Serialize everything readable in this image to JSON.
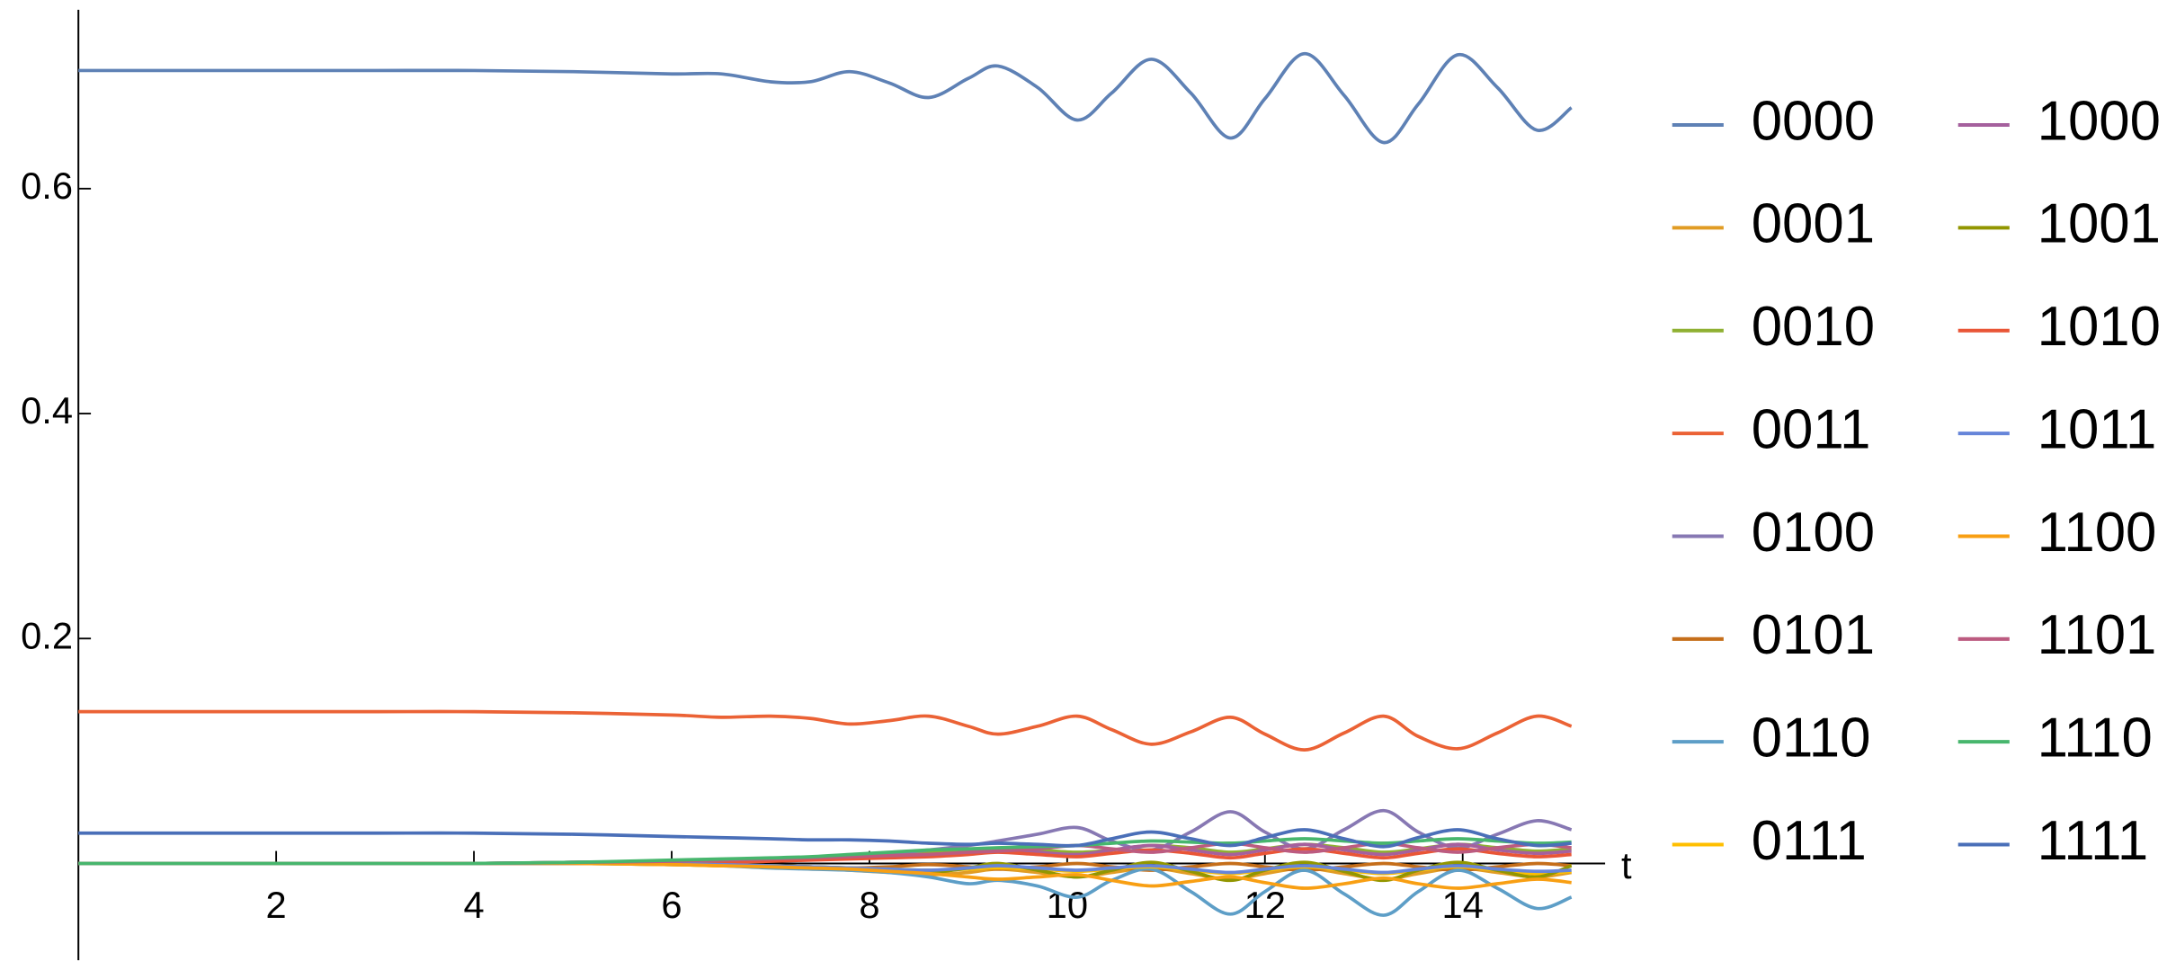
{
  "chart_data": {
    "type": "line",
    "x_label": "t",
    "x": [
      0,
      1,
      2,
      3,
      4,
      5,
      6,
      6.5,
      7,
      7.4,
      7.8,
      8.2,
      8.6,
      9,
      9.3,
      9.7,
      10.1,
      10.45,
      10.85,
      11.25,
      11.65,
      12,
      12.4,
      12.8,
      13.2,
      13.55,
      13.95,
      14.35,
      14.75,
      15.1
    ],
    "xlim": [
      0,
      15.3
    ],
    "xticks": [
      2,
      4,
      6,
      8,
      10,
      12,
      14
    ],
    "ylim": [
      -0.086,
      0.759
    ],
    "yticks": [
      0.2,
      0.4,
      0.6
    ],
    "legend": "right",
    "series": [
      {
        "name": "0000",
        "color": "#5E81B5",
        "values": [
          0.705,
          0.705,
          0.705,
          0.705,
          0.705,
          0.704,
          0.702,
          0.702,
          0.695,
          0.695,
          0.704,
          0.694,
          0.681,
          0.698,
          0.709,
          0.69,
          0.661,
          0.685,
          0.715,
          0.685,
          0.645,
          0.68,
          0.72,
          0.683,
          0.641,
          0.675,
          0.719,
          0.69,
          0.652,
          0.672
        ]
      },
      {
        "name": "0001",
        "color": "#E19C24",
        "values": [
          0,
          0,
          0,
          0,
          0,
          0,
          -0.001,
          -0.002,
          -0.003,
          -0.004,
          -0.006,
          -0.008,
          -0.01,
          -0.008,
          -0.005,
          -0.008,
          -0.012,
          -0.008,
          -0.004,
          -0.009,
          -0.014,
          -0.009,
          -0.004,
          -0.009,
          -0.014,
          -0.009,
          -0.004,
          -0.008,
          -0.012,
          -0.008
        ]
      },
      {
        "name": "0010",
        "color": "#8FB032",
        "values": [
          0,
          0,
          0,
          0,
          0,
          0.001,
          0.002,
          0.003,
          0.004,
          0.005,
          0.006,
          0.008,
          0.01,
          0.012,
          0.013,
          0.012,
          0.01,
          0.012,
          0.016,
          0.014,
          0.01,
          0.013,
          0.017,
          0.014,
          0.01,
          0.013,
          0.017,
          0.014,
          0.011,
          0.013
        ]
      },
      {
        "name": "0011",
        "color": "#EB6235",
        "values": [
          0.135,
          0.135,
          0.135,
          0.135,
          0.135,
          0.134,
          0.132,
          0.13,
          0.131,
          0.129,
          0.124,
          0.127,
          0.131,
          0.122,
          0.115,
          0.122,
          0.131,
          0.119,
          0.106,
          0.117,
          0.13,
          0.115,
          0.101,
          0.116,
          0.131,
          0.113,
          0.102,
          0.116,
          0.131,
          0.122
        ]
      },
      {
        "name": "0100",
        "color": "#8778B3",
        "values": [
          0,
          0,
          0,
          0,
          0,
          0.001,
          0.002,
          0.003,
          0.004,
          0.005,
          0.007,
          0.009,
          0.012,
          0.016,
          0.02,
          0.026,
          0.032,
          0.02,
          0.012,
          0.028,
          0.046,
          0.028,
          0.013,
          0.03,
          0.047,
          0.028,
          0.014,
          0.026,
          0.038,
          0.03
        ]
      },
      {
        "name": "0101",
        "color": "#C56E1A",
        "values": [
          0,
          0,
          0,
          0,
          0,
          0,
          0,
          -0.001,
          -0.002,
          -0.003,
          -0.004,
          -0.003,
          -0.001,
          -0.003,
          -0.005,
          -0.003,
          0,
          -0.003,
          -0.006,
          -0.003,
          0,
          -0.003,
          -0.006,
          -0.003,
          0,
          -0.003,
          -0.006,
          -0.003,
          0,
          -0.002
        ]
      },
      {
        "name": "0110",
        "color": "#5D9EC7",
        "values": [
          0,
          0,
          0,
          0,
          0,
          0,
          -0.001,
          -0.002,
          -0.004,
          -0.005,
          -0.006,
          -0.008,
          -0.012,
          -0.018,
          -0.015,
          -0.02,
          -0.03,
          -0.015,
          -0.005,
          -0.025,
          -0.045,
          -0.025,
          -0.006,
          -0.027,
          -0.046,
          -0.025,
          -0.006,
          -0.022,
          -0.04,
          -0.03
        ]
      },
      {
        "name": "0111",
        "color": "#FFBF00",
        "values": [
          0,
          0,
          0,
          0,
          0,
          0,
          -0.001,
          -0.002,
          -0.002,
          -0.003,
          -0.004,
          -0.005,
          -0.006,
          -0.005,
          -0.004,
          -0.005,
          -0.007,
          -0.005,
          -0.003,
          -0.006,
          -0.009,
          -0.006,
          -0.003,
          -0.006,
          -0.009,
          -0.006,
          -0.003,
          -0.006,
          -0.009,
          -0.007
        ]
      },
      {
        "name": "1000",
        "color": "#A5609D",
        "values": [
          0,
          0,
          0,
          0,
          0,
          0.001,
          0.002,
          0.003,
          0.004,
          0.005,
          0.006,
          0.007,
          0.008,
          0.01,
          0.012,
          0.01,
          0.008,
          0.012,
          0.016,
          0.012,
          0.008,
          0.012,
          0.017,
          0.012,
          0.008,
          0.012,
          0.017,
          0.012,
          0.009,
          0.011
        ]
      },
      {
        "name": "1001",
        "color": "#929600",
        "values": [
          0,
          0,
          0,
          0,
          0,
          0,
          0,
          -0.001,
          -0.002,
          -0.003,
          -0.004,
          -0.006,
          -0.008,
          -0.004,
          0,
          -0.006,
          -0.012,
          -0.006,
          0.001,
          -0.007,
          -0.015,
          -0.006,
          0.001,
          -0.007,
          -0.015,
          -0.006,
          0.001,
          -0.006,
          -0.012,
          -0.002
        ]
      },
      {
        "name": "1010",
        "color": "#E95536",
        "values": [
          0,
          0,
          0,
          0,
          0,
          0,
          0.001,
          0.001,
          0.002,
          0.003,
          0.004,
          0.005,
          0.006,
          0.008,
          0.01,
          0.008,
          0.006,
          0.009,
          0.012,
          0.009,
          0.005,
          0.009,
          0.013,
          0.009,
          0.005,
          0.009,
          0.013,
          0.009,
          0.006,
          0.008
        ]
      },
      {
        "name": "1011",
        "color": "#6685D9",
        "values": [
          0,
          0,
          0,
          0,
          0,
          0,
          0,
          -0.001,
          -0.002,
          -0.003,
          -0.004,
          -0.005,
          -0.006,
          -0.004,
          -0.002,
          -0.004,
          -0.006,
          -0.004,
          -0.002,
          -0.005,
          -0.008,
          -0.005,
          -0.002,
          -0.005,
          -0.008,
          -0.005,
          -0.002,
          -0.005,
          -0.007,
          -0.006
        ]
      },
      {
        "name": "1100",
        "color": "#F89F13",
        "values": [
          0,
          0,
          0,
          0,
          0,
          0,
          -0.001,
          -0.002,
          -0.003,
          -0.004,
          -0.005,
          -0.007,
          -0.009,
          -0.012,
          -0.014,
          -0.012,
          -0.01,
          -0.015,
          -0.02,
          -0.016,
          -0.012,
          -0.017,
          -0.022,
          -0.018,
          -0.013,
          -0.018,
          -0.022,
          -0.018,
          -0.014,
          -0.017
        ]
      },
      {
        "name": "1101",
        "color": "#BC5B80",
        "values": [
          0,
          0,
          0,
          0,
          0,
          0.001,
          0.002,
          0.003,
          0.004,
          0.005,
          0.006,
          0.007,
          0.008,
          0.01,
          0.011,
          0.013,
          0.016,
          0.013,
          0.01,
          0.014,
          0.018,
          0.014,
          0.01,
          0.014,
          0.018,
          0.014,
          0.01,
          0.014,
          0.017,
          0.014
        ]
      },
      {
        "name": "1110",
        "color": "#47B66D",
        "values": [
          0,
          0,
          0,
          0,
          0,
          0.001,
          0.003,
          0.004,
          0.005,
          0.006,
          0.008,
          0.01,
          0.012,
          0.013,
          0.014,
          0.015,
          0.016,
          0.018,
          0.02,
          0.019,
          0.018,
          0.02,
          0.022,
          0.02,
          0.018,
          0.02,
          0.022,
          0.02,
          0.018,
          0.019
        ]
      },
      {
        "name": "1111",
        "color": "#4A6FB8",
        "values": [
          0.027,
          0.027,
          0.027,
          0.027,
          0.027,
          0.026,
          0.024,
          0.023,
          0.022,
          0.021,
          0.021,
          0.02,
          0.018,
          0.017,
          0.018,
          0.017,
          0.016,
          0.022,
          0.028,
          0.022,
          0.016,
          0.023,
          0.03,
          0.022,
          0.015,
          0.023,
          0.03,
          0.022,
          0.016,
          0.018
        ]
      }
    ]
  }
}
